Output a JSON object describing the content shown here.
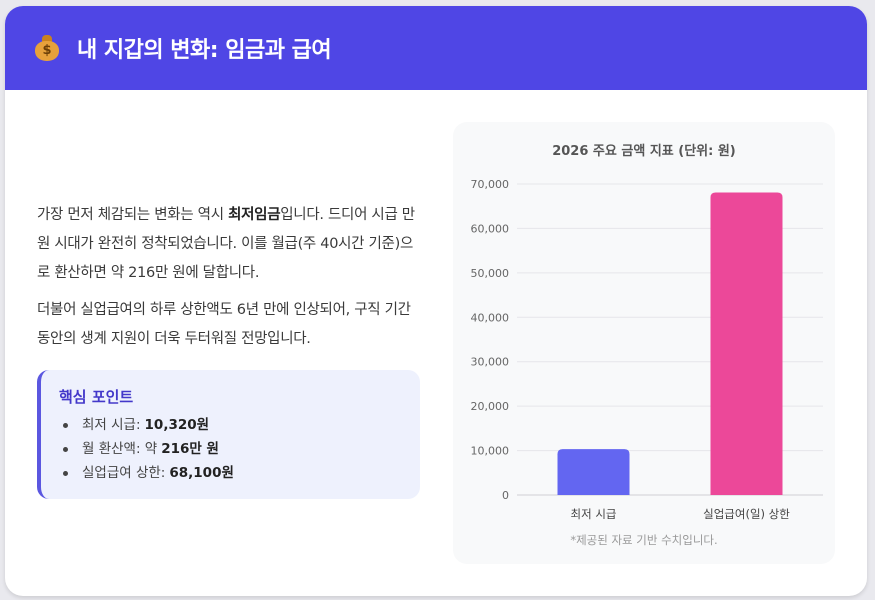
{
  "header": {
    "icon": "money-bag-icon",
    "title": "내 지갑의 변화: 임금과 급여"
  },
  "content": {
    "p1_part1": "가장 먼저 체감되는 변화는 역시 ",
    "p1_bold": "최저임금",
    "p1_part2": "입니다. 드디어 시급 만 원 시대가 완전히 정착되었습니다. 이를 월급(주 40시간 기준)으로 환산하면 약 216만 원에 달합니다.",
    "p2": "더불어 실업급여의 하루 상한액도 6년 만에 인상되어, 구직 기간 동안의 생계 지원이 더욱 두터워질 전망입니다."
  },
  "keypoints": {
    "title": "핵심 포인트",
    "items": [
      {
        "label": "최저 시급:",
        "value": "10,320원"
      },
      {
        "label": "월 환산액: 약",
        "value": "216만 원"
      },
      {
        "label": "실업급여 상한:",
        "value": "68,100원"
      }
    ]
  },
  "colors": {
    "header_bg": "#4f46e5",
    "bar_1": "#6366f1",
    "bar_2": "#ec4899"
  },
  "chart_data": {
    "type": "bar",
    "title": "2026 주요 금액 지표 (단위: 원)",
    "categories": [
      "최저 시급",
      "실업급여(일) 상한"
    ],
    "values": [
      10320,
      68100
    ],
    "colors": [
      "#6366f1",
      "#ec4899"
    ],
    "ylim": [
      0,
      70000
    ],
    "yticks": [
      0,
      10000,
      20000,
      30000,
      40000,
      50000,
      60000,
      70000
    ],
    "ytick_labels": [
      "0",
      "10,000",
      "20,000",
      "30,000",
      "40,000",
      "50,000",
      "60,000",
      "70,000"
    ],
    "grid": true,
    "legend": "none",
    "note": "*제공된 자료 기반 수치입니다."
  }
}
